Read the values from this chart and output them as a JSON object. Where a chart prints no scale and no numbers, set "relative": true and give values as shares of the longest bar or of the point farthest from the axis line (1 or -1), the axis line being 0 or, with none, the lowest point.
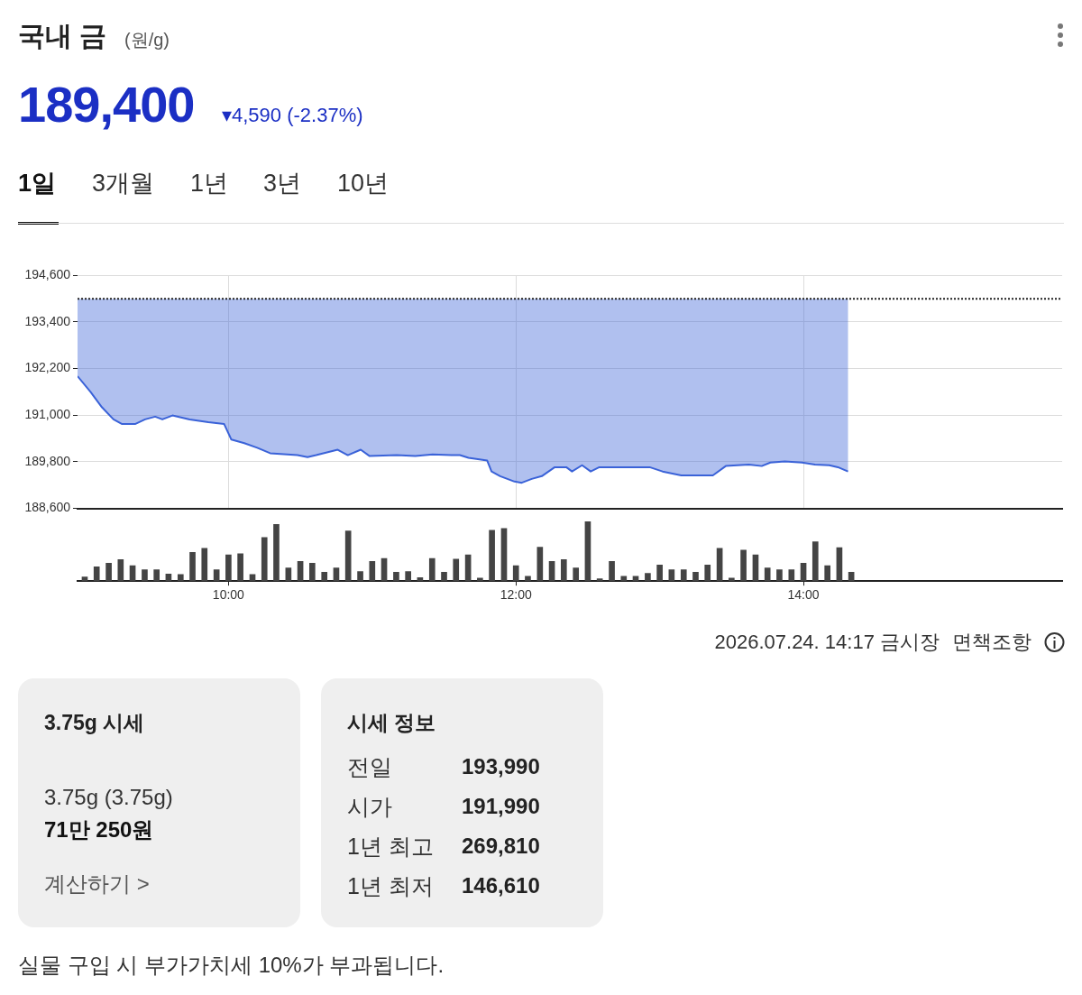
{
  "chart_data": [
    {
      "type": "line",
      "title": "국내 금",
      "subtitle": "(원/g)",
      "annotations": [
        "189,400",
        "▾4,590 (-2.37%)",
        "1일",
        "3개월",
        "1년",
        "3년",
        "10년",
        "2026.07.24. 14:17 금시장",
        "면책조항"
      ],
      "x": [
        8.95,
        9.04,
        9.12,
        9.2,
        9.26,
        9.35,
        9.42,
        9.49,
        9.54,
        9.61,
        9.67,
        9.73,
        9.86,
        9.97,
        10.02,
        10.11,
        10.2,
        10.29,
        10.48,
        10.55,
        10.61,
        10.76,
        10.83,
        10.92,
        10.98,
        11.17,
        11.3,
        11.42,
        11.55,
        11.61,
        11.67,
        11.8,
        11.83,
        11.89,
        11.99,
        12.04,
        12.11,
        12.18,
        12.27,
        12.35,
        12.39,
        12.46,
        12.52,
        12.58,
        12.74,
        12.93,
        13.02,
        13.15,
        13.37,
        13.46,
        13.62,
        13.71,
        13.77,
        13.87,
        13.99,
        14.08,
        14.18,
        14.24,
        14.31
      ],
      "series": [
        {
          "color": "#3a62d8",
          "values": [
            192000,
            191600,
            191200,
            190890,
            190770,
            190770,
            190890,
            190960,
            190890,
            190990,
            190940,
            190890,
            190820,
            190770,
            190370,
            190280,
            190160,
            190020,
            189970,
            189920,
            189970,
            190110,
            189970,
            190110,
            189950,
            189970,
            189950,
            189990,
            189970,
            189970,
            189900,
            189830,
            189550,
            189430,
            189290,
            189260,
            189360,
            189430,
            189660,
            189660,
            189550,
            189710,
            189550,
            189660,
            189660,
            189660,
            189550,
            189450,
            189450,
            189690,
            189730,
            189690,
            189780,
            189810,
            189780,
            189730,
            189710,
            189660,
            189550
          ],
          "lower": [
            192000,
            191600,
            191200,
            190890,
            190770,
            190770,
            190890,
            190960,
            190890,
            190990,
            190940,
            190890,
            190820,
            190770,
            190370,
            190280,
            190160,
            190020,
            189970,
            189920,
            189970,
            190110,
            189970,
            190110,
            189950,
            189970,
            189950,
            189990,
            189970,
            189970,
            189900,
            189830,
            189550,
            189430,
            189290,
            189260,
            189360,
            189430,
            189660,
            189660,
            189550,
            189710,
            189550,
            189660,
            189660,
            189660,
            189550,
            189450,
            189450,
            189690,
            189730,
            189690,
            189780,
            189810,
            189780,
            189730,
            189710,
            189660,
            189550
          ],
          "upper": [
            193990,
            193990,
            193990,
            193990,
            193990,
            193990,
            193990,
            193990,
            193990,
            193990,
            193990,
            193990,
            193990,
            193990,
            193990,
            193990,
            193990,
            193990,
            193990,
            193990,
            193990,
            193990,
            193990,
            193990,
            193990,
            193990,
            193990,
            193990,
            193990,
            193990,
            193990,
            193990,
            193990,
            193990,
            193990,
            193990,
            193990,
            193990,
            193990,
            193990,
            193990,
            193990,
            193990,
            193990,
            193990,
            193990,
            193990,
            193990,
            193990,
            193990,
            193990,
            193990,
            193990,
            193990,
            193990,
            193990,
            193990,
            193990,
            193990
          ]
        }
      ],
      "xlim": [
        8.95,
        15.8
      ],
      "xticks": [
        10,
        12,
        14
      ],
      "ylim": [
        188600,
        194600
      ],
      "yticks": [
        {
          "value": 188600,
          "label": "188,600"
        },
        {
          "value": 189800,
          "label": "189,800"
        },
        {
          "value": 191000,
          "label": "191,000"
        },
        {
          "value": 192200,
          "label": "192,200"
        },
        {
          "value": 193400,
          "label": "193,400"
        },
        {
          "value": 194600,
          "label": "194,600"
        }
      ],
      "tick_labels": "y",
      "grid": true,
      "ref_lines": [
        {
          "axis": "y",
          "value": 193990,
          "line_style": "dotted",
          "color": "#222222"
        }
      ]
    },
    {
      "type": "bar",
      "relative": true,
      "color": "#444444",
      "x": [
        9,
        9.083,
        9.167,
        9.25,
        9.333,
        9.417,
        9.5,
        9.583,
        9.667,
        9.75,
        9.833,
        9.917,
        10,
        10.083,
        10.167,
        10.25,
        10.333,
        10.417,
        10.5,
        10.583,
        10.667,
        10.75,
        10.833,
        10.917,
        11,
        11.083,
        11.167,
        11.25,
        11.333,
        11.417,
        11.5,
        11.583,
        11.667,
        11.75,
        11.833,
        11.917,
        12,
        12.083,
        12.167,
        12.25,
        12.333,
        12.417,
        12.5,
        12.583,
        12.667,
        12.75,
        12.833,
        12.917,
        13,
        13.083,
        13.167,
        13.25,
        13.333,
        13.417,
        13.5,
        13.583,
        13.667,
        13.75,
        13.833,
        13.917,
        14,
        14.083,
        14.167,
        14.25,
        14.333
      ],
      "values": [
        0.07,
        0.24,
        0.3,
        0.36,
        0.26,
        0.19,
        0.19,
        0.12,
        0.11,
        0.48,
        0.55,
        0.19,
        0.44,
        0.46,
        0.11,
        0.73,
        0.95,
        0.22,
        0.33,
        0.3,
        0.15,
        0.22,
        0.84,
        0.16,
        0.33,
        0.38,
        0.15,
        0.16,
        0.06,
        0.38,
        0.15,
        0.37,
        0.44,
        0.05,
        0.85,
        0.88,
        0.26,
        0.08,
        0.57,
        0.33,
        0.36,
        0.22,
        1,
        0.04,
        0.33,
        0.08,
        0.08,
        0.13,
        0.27,
        0.19,
        0.19,
        0.15,
        0.27,
        0.55,
        0.05,
        0.52,
        0.44,
        0.22,
        0.19,
        0.19,
        0.3,
        0.66,
        0.26,
        0.56,
        0.15
      ],
      "xlim": [
        8.95,
        15.8
      ],
      "xticks": [
        {
          "value": 10,
          "label": "10:00"
        },
        {
          "value": 12,
          "label": "12:00"
        },
        {
          "value": 14,
          "label": "14:00"
        }
      ],
      "tick_labels": "x"
    },
    {
      "type": "other",
      "title": "3.75g 시세",
      "annotations": [
        "3.75g (3.75g)",
        "71만 250원",
        "계산하기 >"
      ]
    },
    {
      "type": "other",
      "title": "시세 정보",
      "categories": [
        "전일",
        "시가",
        "1년 최고",
        "1년 최저"
      ],
      "value_labels": [
        "193,990",
        "191,990",
        "269,810",
        "146,610"
      ],
      "annotations": [
        "실물 구입 시 부가가치세 10%가 부과됩니다."
      ]
    }
  ]
}
